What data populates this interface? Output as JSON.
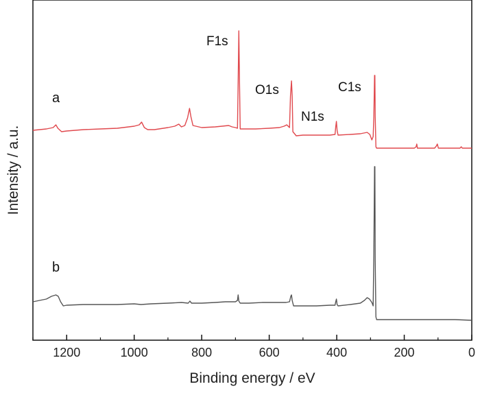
{
  "chart_data": {
    "type": "line",
    "xlabel": "Binding energy / eV",
    "ylabel": "Intensity / a.u.",
    "xlim": [
      1300,
      0
    ],
    "x_reversed": true,
    "x_ticks": [
      1200,
      1000,
      800,
      600,
      400,
      200,
      0
    ],
    "y_ticks_shown": false,
    "grid": false,
    "series": [
      {
        "name": "a",
        "color": "#e0484d",
        "points": [
          [
            1300,
            190
          ],
          [
            1260,
            188
          ],
          [
            1240,
            186
          ],
          [
            1232,
            182
          ],
          [
            1226,
            187
          ],
          [
            1215,
            192
          ],
          [
            1200,
            191
          ],
          [
            1150,
            189
          ],
          [
            1100,
            188
          ],
          [
            1050,
            187
          ],
          [
            1000,
            184
          ],
          [
            985,
            182
          ],
          [
            978,
            178
          ],
          [
            970,
            186
          ],
          [
            960,
            189
          ],
          [
            940,
            189
          ],
          [
            900,
            186
          ],
          [
            880,
            184
          ],
          [
            868,
            181
          ],
          [
            860,
            185
          ],
          [
            850,
            183
          ],
          [
            842,
            172
          ],
          [
            836,
            158
          ],
          [
            832,
            170
          ],
          [
            826,
            183
          ],
          [
            800,
            186
          ],
          [
            760,
            185
          ],
          [
            740,
            184
          ],
          [
            720,
            183
          ],
          [
            710,
            185
          ],
          [
            700,
            186
          ],
          [
            694,
            187
          ],
          [
            692,
            120
          ],
          [
            690,
            45
          ],
          [
            688,
            120
          ],
          [
            686,
            188
          ],
          [
            670,
            188
          ],
          [
            640,
            188
          ],
          [
            600,
            187
          ],
          [
            570,
            186
          ],
          [
            556,
            184
          ],
          [
            548,
            182
          ],
          [
            540,
            186
          ],
          [
            537,
            140
          ],
          [
            534,
            118
          ],
          [
            532,
            140
          ],
          [
            530,
            192
          ],
          [
            520,
            198
          ],
          [
            500,
            197
          ],
          [
            460,
            197
          ],
          [
            420,
            197
          ],
          [
            405,
            196
          ],
          [
            403,
            185
          ],
          [
            401,
            177
          ],
          [
            399,
            190
          ],
          [
            396,
            197
          ],
          [
            360,
            196
          ],
          [
            330,
            195
          ],
          [
            310,
            193
          ],
          [
            302,
            196
          ],
          [
            296,
            204
          ],
          [
            292,
            199
          ],
          [
            290,
            170
          ],
          [
            288,
            110
          ],
          [
            287,
            110
          ],
          [
            286,
            170
          ],
          [
            284,
            214
          ],
          [
            282,
            216
          ],
          [
            260,
            216
          ],
          [
            220,
            216
          ],
          [
            200,
            216
          ],
          [
            170,
            216
          ],
          [
            165,
            214
          ],
          [
            163,
            210
          ],
          [
            161,
            216
          ],
          [
            150,
            216
          ],
          [
            110,
            216
          ],
          [
            105,
            213
          ],
          [
            102,
            210
          ],
          [
            99,
            216
          ],
          [
            60,
            216
          ],
          [
            35,
            216
          ],
          [
            31,
            214
          ],
          [
            28,
            216
          ],
          [
            0,
            216
          ]
        ]
      },
      {
        "name": "b",
        "color": "#555555",
        "points": [
          [
            1300,
            440
          ],
          [
            1280,
            438
          ],
          [
            1260,
            436
          ],
          [
            1245,
            432
          ],
          [
            1232,
            430
          ],
          [
            1225,
            432
          ],
          [
            1218,
            440
          ],
          [
            1210,
            446
          ],
          [
            1200,
            445
          ],
          [
            1150,
            444
          ],
          [
            1100,
            444
          ],
          [
            1050,
            444
          ],
          [
            1000,
            443
          ],
          [
            980,
            444
          ],
          [
            950,
            443
          ],
          [
            900,
            442
          ],
          [
            860,
            441
          ],
          [
            840,
            442
          ],
          [
            835,
            439
          ],
          [
            830,
            442
          ],
          [
            800,
            442
          ],
          [
            760,
            441
          ],
          [
            730,
            440
          ],
          [
            700,
            440
          ],
          [
            694,
            438
          ],
          [
            692,
            430
          ],
          [
            690,
            439
          ],
          [
            686,
            442
          ],
          [
            660,
            442
          ],
          [
            620,
            441
          ],
          [
            580,
            441
          ],
          [
            550,
            441
          ],
          [
            540,
            440
          ],
          [
            536,
            432
          ],
          [
            534,
            430
          ],
          [
            532,
            438
          ],
          [
            528,
            446
          ],
          [
            500,
            446
          ],
          [
            460,
            446
          ],
          [
            420,
            445
          ],
          [
            405,
            445
          ],
          [
            403,
            440
          ],
          [
            401,
            436
          ],
          [
            399,
            444
          ],
          [
            396,
            446
          ],
          [
            360,
            444
          ],
          [
            330,
            442
          ],
          [
            318,
            438
          ],
          [
            310,
            434
          ],
          [
            303,
            436
          ],
          [
            296,
            441
          ],
          [
            292,
            446
          ],
          [
            290,
            370
          ],
          [
            288,
            243
          ],
          [
            287,
            243
          ],
          [
            286,
            380
          ],
          [
            284,
            462
          ],
          [
            282,
            466
          ],
          [
            260,
            466
          ],
          [
            220,
            466
          ],
          [
            200,
            466
          ],
          [
            150,
            466
          ],
          [
            100,
            466
          ],
          [
            50,
            466
          ],
          [
            0,
            467
          ]
        ]
      }
    ],
    "annotations": [
      "F1s",
      "O1s",
      "N1s",
      "C1s"
    ],
    "curve_labels": [
      "a",
      "b"
    ]
  }
}
